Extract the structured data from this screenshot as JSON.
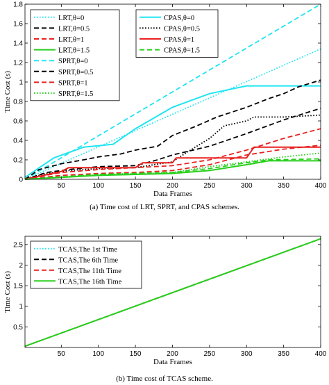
{
  "captions": {
    "a": "(a)  Time cost of LRT, SPRT, and CPAS schemes.",
    "b": "(b)  Time cost of TCAS scheme."
  },
  "colors": {
    "cyan": "#1fe5f2",
    "black": "#000000",
    "red": "#e8201e",
    "green": "#28d01c"
  },
  "chart_data": [
    {
      "type": "line",
      "title": "",
      "xlabel": "Data Frames",
      "ylabel": "Time Cost (s)",
      "xlim": [
        1,
        400
      ],
      "ylim": [
        0,
        1.8
      ],
      "xticks": [
        50,
        100,
        150,
        200,
        250,
        300,
        350,
        400
      ],
      "yticks": [
        0,
        0.2,
        0.4,
        0.6,
        0.8,
        1,
        1.2,
        1.4,
        1.6,
        1.8
      ],
      "legend_left": [
        {
          "name": "LRT,θ=0",
          "color": "#1fe5f2",
          "style": "dotted"
        },
        {
          "name": "LRT,θ=0.5",
          "color": "#000000",
          "style": "dashed"
        },
        {
          "name": "LRT,θ=1",
          "color": "#e8201e",
          "style": "dashed"
        },
        {
          "name": "LRT,θ=1.5",
          "color": "#28d01c",
          "style": "solid"
        },
        {
          "name": "SPRT,θ=0",
          "color": "#1fe5f2",
          "style": "dashed"
        },
        {
          "name": "SPRT,θ=0.5",
          "color": "#000000",
          "style": "dashed"
        },
        {
          "name": "SPRT,θ=1",
          "color": "#e8201e",
          "style": "dashed"
        },
        {
          "name": "SPRT,θ=1.5",
          "color": "#28d01c",
          "style": "dotted"
        }
      ],
      "legend_right": [
        {
          "name": "CPAS,θ=0",
          "color": "#1fe5f2",
          "style": "solid"
        },
        {
          "name": "CPAS,θ=0.5",
          "color": "#000000",
          "style": "dotted"
        },
        {
          "name": "CPAS,θ=1",
          "color": "#e8201e",
          "style": "solid"
        },
        {
          "name": "CPAS,θ=1.5",
          "color": "#28d01c",
          "style": "dashed"
        }
      ],
      "series": [
        {
          "name": "SPRT,θ=0",
          "color": "#1fe5f2",
          "style": "dashed",
          "x": [
            1,
            400
          ],
          "y": [
            0.0,
            1.8
          ]
        },
        {
          "name": "LRT,θ=0",
          "color": "#1fe5f2",
          "style": "dotted",
          "x": [
            1,
            400
          ],
          "y": [
            0.0,
            1.34
          ]
        },
        {
          "name": "CPAS,θ=0",
          "color": "#1fe5f2",
          "style": "solid",
          "x": [
            1,
            40,
            80,
            120,
            150,
            200,
            250,
            300,
            310,
            400
          ],
          "y": [
            0.02,
            0.22,
            0.33,
            0.36,
            0.52,
            0.74,
            0.88,
            0.96,
            0.96,
            0.96
          ]
        },
        {
          "name": "LRT,θ=0.5",
          "color": "#000000",
          "style": "dashed",
          "x": [
            1,
            20,
            50,
            80,
            100,
            130,
            150,
            180,
            200,
            230,
            260,
            300,
            330,
            350,
            370,
            400
          ],
          "y": [
            0.0,
            0.1,
            0.16,
            0.2,
            0.23,
            0.26,
            0.3,
            0.34,
            0.45,
            0.54,
            0.64,
            0.74,
            0.83,
            0.88,
            0.95,
            1.02
          ]
        },
        {
          "name": "SPRT,θ=0.5",
          "color": "#000000",
          "style": "dashed",
          "x": [
            1,
            30,
            60,
            100,
            150,
            180,
            200,
            250,
            300,
            350,
            400
          ],
          "y": [
            0.0,
            0.07,
            0.1,
            0.13,
            0.14,
            0.2,
            0.25,
            0.34,
            0.47,
            0.61,
            0.73
          ]
        },
        {
          "name": "CPAS,θ=0.5",
          "color": "#000000",
          "style": "dotted",
          "x": [
            1,
            30,
            60,
            100,
            150,
            200,
            220,
            250,
            270,
            300,
            310,
            350,
            400
          ],
          "y": [
            0.0,
            0.06,
            0.09,
            0.11,
            0.12,
            0.18,
            0.28,
            0.42,
            0.55,
            0.6,
            0.64,
            0.64,
            0.66
          ]
        },
        {
          "name": "LRT,θ=1",
          "color": "#e8201e",
          "style": "dashed",
          "x": [
            1,
            50,
            100,
            150,
            200,
            250,
            300,
            350,
            400
          ],
          "y": [
            0.0,
            0.07,
            0.1,
            0.12,
            0.14,
            0.2,
            0.3,
            0.42,
            0.52
          ]
        },
        {
          "name": "SPRT,θ=1",
          "color": "#e8201e",
          "style": "dashed",
          "x": [
            1,
            50,
            100,
            150,
            200,
            250,
            300,
            350,
            400
          ],
          "y": [
            0.0,
            0.04,
            0.06,
            0.07,
            0.09,
            0.15,
            0.25,
            0.31,
            0.35
          ]
        },
        {
          "name": "CPAS,θ=1",
          "color": "#e8201e",
          "style": "solid",
          "x": [
            1,
            50,
            60,
            150,
            160,
            200,
            205,
            300,
            310,
            400
          ],
          "y": [
            0.0,
            0.08,
            0.12,
            0.12,
            0.17,
            0.17,
            0.22,
            0.22,
            0.33,
            0.33
          ]
        },
        {
          "name": "LRT,θ=1.5",
          "color": "#28d01c",
          "style": "solid",
          "x": [
            1,
            100,
            200,
            250,
            300,
            330,
            400
          ],
          "y": [
            0.0,
            0.04,
            0.06,
            0.09,
            0.15,
            0.19,
            0.19
          ]
        },
        {
          "name": "SPRT,θ=1.5",
          "color": "#28d01c",
          "style": "dotted",
          "x": [
            1,
            100,
            200,
            250,
            300,
            350,
            400
          ],
          "y": [
            0.0,
            0.05,
            0.07,
            0.13,
            0.18,
            0.23,
            0.27
          ]
        },
        {
          "name": "CPAS,θ=1.5",
          "color": "#28d01c",
          "style": "dashed",
          "x": [
            1,
            100,
            200,
            250,
            300,
            330,
            400
          ],
          "y": [
            0.0,
            0.05,
            0.07,
            0.11,
            0.17,
            0.2,
            0.21
          ]
        }
      ]
    },
    {
      "type": "line",
      "title": "",
      "xlabel": "Data Frames",
      "ylabel": "Time Cost (s)",
      "xlim": [
        1,
        400
      ],
      "ylim": [
        0,
        2.7
      ],
      "xticks": [
        50,
        100,
        150,
        200,
        250,
        300,
        350,
        400
      ],
      "yticks": [
        0.5,
        1,
        1.5,
        2,
        2.5
      ],
      "legend": [
        {
          "name": "TCAS,The 1st Time",
          "color": "#1fe5f2",
          "style": "dotted"
        },
        {
          "name": "TCAS,The 6th Time",
          "color": "#000000",
          "style": "dashed"
        },
        {
          "name": "TCAS,The 11th Time",
          "color": "#e8201e",
          "style": "dashed"
        },
        {
          "name": "TCAS,The 16th Time",
          "color": "#28d01c",
          "style": "solid"
        }
      ],
      "series": [
        {
          "name": "TCAS,The 1st Time",
          "color": "#1fe5f2",
          "style": "dotted",
          "x": [
            1,
            400
          ],
          "y": [
            0.03,
            2.64
          ]
        },
        {
          "name": "TCAS,The 6th Time",
          "color": "#000000",
          "style": "dashed",
          "x": [
            1,
            400
          ],
          "y": [
            0.03,
            2.64
          ]
        },
        {
          "name": "TCAS,The 11th Time",
          "color": "#e8201e",
          "style": "dashed",
          "x": [
            1,
            400
          ],
          "y": [
            0.03,
            2.64
          ]
        },
        {
          "name": "TCAS,The 16th Time",
          "color": "#28d01c",
          "style": "solid",
          "x": [
            1,
            400
          ],
          "y": [
            0.03,
            2.64
          ]
        }
      ]
    }
  ]
}
